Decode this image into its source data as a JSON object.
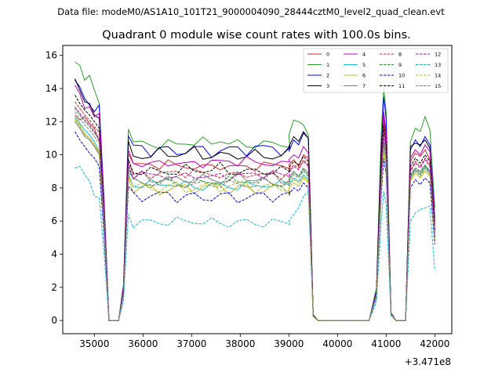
{
  "chart_data": {
    "type": "line",
    "suptitle": "Data file: modeM0/AS1A10_101T21_9000004090_28444cztM0_level2_quad_clean.evt",
    "title": "Quadrant 0 module wise count rates with 100.0s bins.",
    "xlabel": "",
    "ylabel": "",
    "x_offset_label": "+3.471e8",
    "xlim": [
      34350,
      42350
    ],
    "ylim": [
      -0.8,
      16.6
    ],
    "x_ticks": [
      35000,
      36000,
      37000,
      38000,
      39000,
      40000,
      41000,
      42000
    ],
    "x_tick_labels": [
      "35000",
      "36000",
      "37000",
      "38000",
      "39000",
      "40000",
      "41000",
      "42000"
    ],
    "y_ticks": [
      0,
      2,
      4,
      6,
      8,
      10,
      12,
      14,
      16
    ],
    "y_tick_labels": [
      "0",
      "2",
      "4",
      "6",
      "8",
      "10",
      "12",
      "14",
      "16"
    ],
    "x_start": 34600,
    "x_step": 100,
    "n_points": 75,
    "gaps": [
      {
        "start": 14,
        "end": 28
      },
      {
        "start": 39,
        "end": 45
      },
      {
        "start": 48,
        "end": 52
      },
      {
        "start": 53,
        "end": 61
      }
    ],
    "plateau_shape": [
      1.0,
      0.985,
      0.99,
      0.97,
      0.98,
      0.965,
      0.97,
      0.955,
      0.975,
      0.96,
      0.965,
      0.95,
      0.97,
      0.96,
      0.975
    ],
    "series": [
      {
        "name": "0",
        "color": "#d62728",
        "dashed": false,
        "pre": [
          12.4,
          12.1,
          12.3,
          11.9,
          11.6,
          10.8
        ],
        "level": 9.6,
        "post": [
          9.4,
          9.7,
          9.3,
          10.0,
          9.8
        ],
        "peak": 12.1,
        "peak_side": [
          8.0,
          7.5
        ],
        "tail": [
          9.6,
          10.1,
          9.9,
          10.3,
          9.7,
          5.5
        ]
      },
      {
        "name": "1",
        "color": "#2ca02c",
        "dashed": false,
        "pre": [
          15.6,
          15.4,
          14.5,
          14.8,
          13.9,
          13.1
        ],
        "level": 11.0,
        "post": [
          11.2,
          12.1,
          12.0,
          11.8,
          11.2
        ],
        "peak": 14.0,
        "peak_side": [
          11.4,
          9.8
        ],
        "tail": [
          10.8,
          11.6,
          11.4,
          12.3,
          11.5,
          6.8
        ]
      },
      {
        "name": "2",
        "color": "#0000ff",
        "dashed": false,
        "pre": [
          14.5,
          14.1,
          13.4,
          13.0,
          12.6,
          13.0
        ],
        "level": 10.6,
        "post": [
          10.2,
          10.9,
          10.6,
          11.3,
          11.0
        ],
        "peak": 13.5,
        "peak_side": [
          10.2,
          9.0
        ],
        "tail": [
          10.3,
          10.9,
          10.5,
          11.1,
          10.6,
          6.2
        ]
      },
      {
        "name": "3",
        "color": "#000000",
        "dashed": false,
        "pre": [
          14.6,
          13.9,
          13.2,
          13.1,
          12.4,
          12.2
        ],
        "level": 10.3,
        "post": [
          10.5,
          11.1,
          10.8,
          11.4,
          11.0
        ],
        "peak": 12.5,
        "peak_side": [
          10.5,
          8.5
        ],
        "tail": [
          10.5,
          10.7,
          10.6,
          10.9,
          10.4,
          6.0
        ]
      },
      {
        "name": "4",
        "color": "#bf00bf",
        "dashed": false,
        "pre": [
          14.2,
          13.7,
          12.8,
          12.9,
          12.3,
          12.5
        ],
        "level": 9.8,
        "post": [
          9.7,
          10.0,
          9.8,
          10.5,
          10.1
        ],
        "peak": 12.6,
        "peak_side": [
          9.5,
          8.4
        ],
        "tail": [
          9.8,
          10.3,
          10.0,
          10.6,
          10.2,
          5.8
        ]
      },
      {
        "name": "5",
        "color": "#17becf",
        "dashed": false,
        "pre": [
          12.3,
          11.9,
          11.5,
          11.2,
          10.8,
          10.2
        ],
        "level": 8.4,
        "post": [
          8.2,
          8.6,
          8.4,
          8.8,
          8.5
        ],
        "peak": 10.5,
        "peak_side": [
          8.2,
          7.6
        ],
        "tail": [
          8.6,
          9.1,
          8.8,
          9.3,
          8.9,
          4.9
        ]
      },
      {
        "name": "6",
        "color": "#bcbd22",
        "dashed": false,
        "pre": [
          12.2,
          11.8,
          11.2,
          11.0,
          10.6,
          10.1
        ],
        "level": 8.2,
        "post": [
          8.0,
          8.3,
          8.1,
          8.6,
          8.3
        ],
        "peak": 10.3,
        "peak_side": [
          8.0,
          7.4
        ],
        "tail": [
          8.4,
          8.9,
          8.6,
          9.0,
          8.7,
          4.8
        ]
      },
      {
        "name": "7",
        "color": "#7f7f7f",
        "dashed": false,
        "pre": [
          12.0,
          11.6,
          11.1,
          10.9,
          10.5,
          10.0
        ],
        "level": 8.8,
        "post": [
          8.6,
          9.0,
          8.7,
          9.2,
          8.9
        ],
        "peak": 10.8,
        "peak_side": [
          8.5,
          7.8
        ],
        "tail": [
          8.8,
          9.2,
          9.0,
          9.4,
          9.0,
          5.0
        ]
      },
      {
        "name": "8",
        "color": "#d62728",
        "dashed": true,
        "pre": [
          13.2,
          12.8,
          12.4,
          12.1,
          11.7,
          11.4
        ],
        "level": 9.1,
        "post": [
          9.0,
          9.4,
          9.2,
          9.7,
          9.4
        ],
        "peak": 11.6,
        "peak_side": [
          9.0,
          8.0
        ],
        "tail": [
          9.1,
          9.6,
          9.3,
          9.8,
          9.4,
          5.3
        ]
      },
      {
        "name": "9",
        "color": "#2ca02c",
        "dashed": true,
        "pre": [
          12.8,
          12.4,
          12.0,
          11.7,
          11.3,
          10.9
        ],
        "level": 8.6,
        "post": [
          8.5,
          8.9,
          8.7,
          9.1,
          8.8
        ],
        "peak": 11.0,
        "peak_side": [
          8.6,
          7.7
        ],
        "tail": [
          8.7,
          9.2,
          8.9,
          9.3,
          9.0,
          5.1
        ]
      },
      {
        "name": "10",
        "color": "#0000ff",
        "dashed": true,
        "pre": [
          11.4,
          10.9,
          10.5,
          10.1,
          9.8,
          9.3
        ],
        "level": 7.7,
        "post": [
          7.6,
          8.0,
          7.8,
          8.3,
          8.0
        ],
        "peak": 9.8,
        "peak_side": [
          7.6,
          6.9
        ],
        "tail": [
          8.0,
          8.5,
          8.2,
          8.6,
          8.3,
          4.6
        ]
      },
      {
        "name": "11",
        "color": "#000000",
        "dashed": true,
        "pre": [
          13.6,
          13.1,
          12.7,
          12.4,
          12.0,
          11.6
        ],
        "level": 9.3,
        "post": [
          9.2,
          9.6,
          9.4,
          9.9,
          9.6
        ],
        "peak": 11.8,
        "peak_side": [
          9.2,
          8.2
        ],
        "tail": [
          9.3,
          9.8,
          9.5,
          10.0,
          9.6,
          5.4
        ]
      },
      {
        "name": "12",
        "color": "#bf00bf",
        "dashed": true,
        "pre": [
          12.9,
          12.5,
          12.1,
          11.8,
          11.4,
          11.0
        ],
        "level": 9.0,
        "post": [
          8.9,
          9.3,
          9.1,
          9.6,
          9.3
        ],
        "peak": 11.3,
        "peak_side": [
          8.8,
          7.9
        ],
        "tail": [
          9.0,
          9.5,
          9.2,
          9.7,
          9.3,
          5.2
        ]
      },
      {
        "name": "13",
        "color": "#17becf",
        "dashed": true,
        "pre": [
          9.2,
          9.3,
          8.8,
          8.4,
          7.5,
          7.4
        ],
        "level": 6.1,
        "post": [
          6.0,
          6.4,
          6.8,
          7.5,
          7.8
        ],
        "peak": 7.8,
        "peak_side": [
          6.0,
          5.6
        ],
        "tail": [
          6.0,
          6.5,
          6.7,
          6.8,
          6.9,
          3.0
        ]
      },
      {
        "name": "14",
        "color": "#bcbd22",
        "dashed": true,
        "pre": [
          12.1,
          11.7,
          11.3,
          11.0,
          10.6,
          10.2
        ],
        "level": 8.3,
        "post": [
          8.1,
          8.5,
          8.3,
          8.7,
          8.4
        ],
        "peak": 10.4,
        "peak_side": [
          8.1,
          7.5
        ],
        "tail": [
          8.5,
          9.0,
          8.7,
          9.1,
          8.8,
          4.9
        ]
      },
      {
        "name": "15",
        "color": "#7f7f7f",
        "dashed": true,
        "pre": [
          12.6,
          12.2,
          11.8,
          11.5,
          11.1,
          10.7
        ],
        "level": 8.5,
        "post": [
          8.4,
          8.8,
          8.6,
          9.0,
          8.7
        ],
        "peak": 10.9,
        "peak_side": [
          8.4,
          7.6
        ],
        "tail": [
          8.6,
          9.1,
          8.8,
          9.2,
          8.9,
          5.0
        ]
      }
    ]
  }
}
